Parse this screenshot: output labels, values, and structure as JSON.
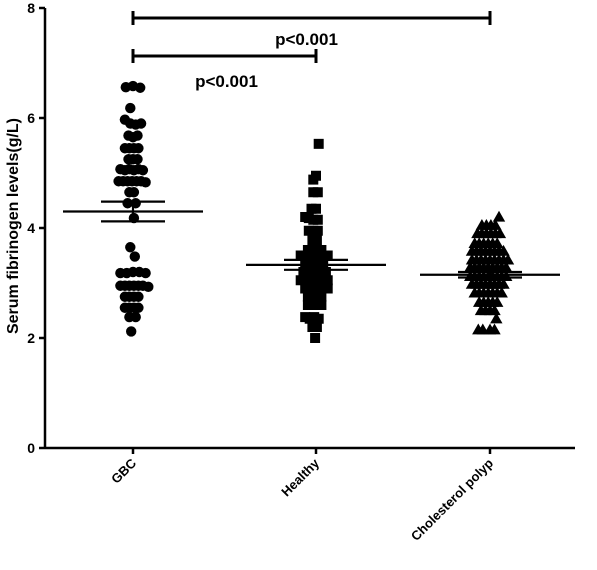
{
  "chart_data": {
    "type": "scatter",
    "subtype": "dot-plot",
    "ylabel": "Serum fibrinogen levels(g/L)",
    "xlabel": "",
    "ylim": [
      0,
      8
    ],
    "yticks": [
      0,
      2,
      4,
      6,
      8
    ],
    "grid": false,
    "categories": [
      "GBC",
      "Healthy",
      "Cholesterol polyp"
    ],
    "groups": [
      {
        "category": "GBC",
        "marker": "circle",
        "mean": 4.3,
        "sem_low": 4.12,
        "sem_high": 4.48,
        "points": [
          {
            "o": -0.8,
            "v": 6.56
          },
          {
            "o": 0.0,
            "v": 6.58
          },
          {
            "o": 0.8,
            "v": 6.55
          },
          {
            "o": -0.3,
            "v": 6.18
          },
          {
            "o": -0.9,
            "v": 5.97
          },
          {
            "o": -0.3,
            "v": 5.9
          },
          {
            "o": 0.3,
            "v": 5.88
          },
          {
            "o": 0.9,
            "v": 5.9
          },
          {
            "o": -0.5,
            "v": 5.68
          },
          {
            "o": 0.0,
            "v": 5.65
          },
          {
            "o": 0.5,
            "v": 5.68
          },
          {
            "o": -0.9,
            "v": 5.45
          },
          {
            "o": -0.4,
            "v": 5.45
          },
          {
            "o": 0.1,
            "v": 5.45
          },
          {
            "o": 0.6,
            "v": 5.45
          },
          {
            "o": -0.5,
            "v": 5.25
          },
          {
            "o": 0.0,
            "v": 5.25
          },
          {
            "o": 0.5,
            "v": 5.25
          },
          {
            "o": -1.4,
            "v": 5.07
          },
          {
            "o": -0.9,
            "v": 5.05
          },
          {
            "o": -0.4,
            "v": 5.07
          },
          {
            "o": 0.1,
            "v": 5.05
          },
          {
            "o": 0.6,
            "v": 5.07
          },
          {
            "o": 1.1,
            "v": 5.05
          },
          {
            "o": -1.6,
            "v": 4.85
          },
          {
            "o": -1.1,
            "v": 4.85
          },
          {
            "o": -0.6,
            "v": 4.85
          },
          {
            "o": -0.1,
            "v": 4.85
          },
          {
            "o": 0.4,
            "v": 4.85
          },
          {
            "o": 0.9,
            "v": 4.85
          },
          {
            "o": 1.4,
            "v": 4.83
          },
          {
            "o": -0.4,
            "v": 4.65
          },
          {
            "o": 0.1,
            "v": 4.65
          },
          {
            "o": -0.6,
            "v": 4.45
          },
          {
            "o": 0.3,
            "v": 4.45
          },
          {
            "o": 0.1,
            "v": 4.18
          },
          {
            "o": -0.3,
            "v": 3.65
          },
          {
            "o": 0.2,
            "v": 3.48
          },
          {
            "o": -1.4,
            "v": 3.18
          },
          {
            "o": -0.7,
            "v": 3.18
          },
          {
            "o": 0.0,
            "v": 3.2
          },
          {
            "o": 0.7,
            "v": 3.2
          },
          {
            "o": 1.4,
            "v": 3.18
          },
          {
            "o": -1.4,
            "v": 2.95
          },
          {
            "o": -0.9,
            "v": 2.95
          },
          {
            "o": -0.4,
            "v": 2.95
          },
          {
            "o": 0.1,
            "v": 2.95
          },
          {
            "o": 0.6,
            "v": 2.95
          },
          {
            "o": 1.1,
            "v": 2.95
          },
          {
            "o": 1.7,
            "v": 2.93
          },
          {
            "o": -0.9,
            "v": 2.75
          },
          {
            "o": -0.4,
            "v": 2.75
          },
          {
            "o": 0.1,
            "v": 2.75
          },
          {
            "o": 0.6,
            "v": 2.75
          },
          {
            "o": -0.9,
            "v": 2.55
          },
          {
            "o": -0.4,
            "v": 2.55
          },
          {
            "o": 0.1,
            "v": 2.55
          },
          {
            "o": 0.6,
            "v": 2.55
          },
          {
            "o": -0.4,
            "v": 2.38
          },
          {
            "o": 0.3,
            "v": 2.38
          },
          {
            "o": -0.2,
            "v": 2.12
          }
        ]
      },
      {
        "category": "Healthy",
        "marker": "square",
        "mean": 3.33,
        "sem_low": 3.24,
        "sem_high": 3.42,
        "points": [
          {
            "o": 0.3,
            "v": 5.53
          },
          {
            "o": 0.0,
            "v": 4.95
          },
          {
            "o": -0.3,
            "v": 4.88
          },
          {
            "o": -0.3,
            "v": 4.65
          },
          {
            "o": 0.2,
            "v": 4.65
          },
          {
            "o": -0.5,
            "v": 4.35
          },
          {
            "o": 0.0,
            "v": 4.35
          },
          {
            "o": -1.2,
            "v": 4.2
          },
          {
            "o": -0.8,
            "v": 4.18
          },
          {
            "o": -0.3,
            "v": 4.15
          },
          {
            "o": 0.2,
            "v": 4.15
          },
          {
            "o": -0.8,
            "v": 3.95
          },
          {
            "o": -0.3,
            "v": 3.95
          },
          {
            "o": 0.2,
            "v": 3.95
          },
          {
            "o": -0.4,
            "v": 3.78
          },
          {
            "o": 0.1,
            "v": 3.78
          },
          {
            "o": -0.9,
            "v": 3.6
          },
          {
            "o": -0.4,
            "v": 3.6
          },
          {
            "o": 0.1,
            "v": 3.6
          },
          {
            "o": 0.6,
            "v": 3.6
          },
          {
            "o": -1.7,
            "v": 3.5
          },
          {
            "o": -1.2,
            "v": 3.5
          },
          {
            "o": -0.7,
            "v": 3.5
          },
          {
            "o": -0.2,
            "v": 3.5
          },
          {
            "o": 0.3,
            "v": 3.5
          },
          {
            "o": 0.8,
            "v": 3.5
          },
          {
            "o": 1.3,
            "v": 3.5
          },
          {
            "o": -1.2,
            "v": 3.35
          },
          {
            "o": -0.7,
            "v": 3.35
          },
          {
            "o": -0.2,
            "v": 3.35
          },
          {
            "o": 0.3,
            "v": 3.35
          },
          {
            "o": 0.8,
            "v": 3.35
          },
          {
            "o": -1.4,
            "v": 3.2
          },
          {
            "o": -0.9,
            "v": 3.2
          },
          {
            "o": -0.4,
            "v": 3.2
          },
          {
            "o": 0.1,
            "v": 3.2
          },
          {
            "o": 0.6,
            "v": 3.2
          },
          {
            "o": 1.1,
            "v": 3.2
          },
          {
            "o": -1.7,
            "v": 3.05
          },
          {
            "o": -1.2,
            "v": 3.05
          },
          {
            "o": -0.7,
            "v": 3.05
          },
          {
            "o": -0.2,
            "v": 3.05
          },
          {
            "o": 0.3,
            "v": 3.05
          },
          {
            "o": 0.8,
            "v": 3.05
          },
          {
            "o": 1.3,
            "v": 3.05
          },
          {
            "o": -1.2,
            "v": 2.9
          },
          {
            "o": -0.7,
            "v": 2.9
          },
          {
            "o": -0.2,
            "v": 2.9
          },
          {
            "o": 0.3,
            "v": 2.9
          },
          {
            "o": 0.8,
            "v": 2.9
          },
          {
            "o": 1.3,
            "v": 2.9
          },
          {
            "o": -0.9,
            "v": 2.75
          },
          {
            "o": -0.4,
            "v": 2.75
          },
          {
            "o": 0.1,
            "v": 2.75
          },
          {
            "o": 0.6,
            "v": 2.75
          },
          {
            "o": -0.9,
            "v": 2.6
          },
          {
            "o": -0.4,
            "v": 2.6
          },
          {
            "o": 0.1,
            "v": 2.6
          },
          {
            "o": 0.6,
            "v": 2.6
          },
          {
            "o": -1.2,
            "v": 2.38
          },
          {
            "o": -0.7,
            "v": 2.35
          },
          {
            "o": -0.2,
            "v": 2.38
          },
          {
            "o": 0.3,
            "v": 2.35
          },
          {
            "o": -0.4,
            "v": 2.2
          },
          {
            "o": 0.1,
            "v": 2.2
          },
          {
            "o": -0.1,
            "v": 2.0
          }
        ]
      },
      {
        "category": "Cholesterol polyp",
        "marker": "triangle",
        "mean": 3.15,
        "sem_low": 3.1,
        "sem_high": 3.2,
        "points": [
          {
            "o": 1.0,
            "v": 4.2
          },
          {
            "o": -0.9,
            "v": 4.05
          },
          {
            "o": -0.4,
            "v": 4.05
          },
          {
            "o": 0.1,
            "v": 4.05
          },
          {
            "o": 0.6,
            "v": 4.05
          },
          {
            "o": -1.4,
            "v": 3.9
          },
          {
            "o": -0.9,
            "v": 3.9
          },
          {
            "o": -0.4,
            "v": 3.9
          },
          {
            "o": 0.1,
            "v": 3.9
          },
          {
            "o": 0.6,
            "v": 3.9
          },
          {
            "o": 1.1,
            "v": 3.9
          },
          {
            "o": -1.7,
            "v": 3.72
          },
          {
            "o": -1.2,
            "v": 3.72
          },
          {
            "o": -0.7,
            "v": 3.72
          },
          {
            "o": -0.2,
            "v": 3.72
          },
          {
            "o": 0.3,
            "v": 3.72
          },
          {
            "o": 0.8,
            "v": 3.72
          },
          {
            "o": -2.0,
            "v": 3.58
          },
          {
            "o": -1.5,
            "v": 3.58
          },
          {
            "o": -1.0,
            "v": 3.58
          },
          {
            "o": -0.5,
            "v": 3.58
          },
          {
            "o": 0.0,
            "v": 3.58
          },
          {
            "o": 0.5,
            "v": 3.58
          },
          {
            "o": 1.0,
            "v": 3.58
          },
          {
            "o": 1.5,
            "v": 3.58
          },
          {
            "o": -2.0,
            "v": 3.42
          },
          {
            "o": -1.5,
            "v": 3.42
          },
          {
            "o": -1.0,
            "v": 3.42
          },
          {
            "o": -0.5,
            "v": 3.42
          },
          {
            "o": 0.0,
            "v": 3.42
          },
          {
            "o": 0.5,
            "v": 3.42
          },
          {
            "o": 1.0,
            "v": 3.42
          },
          {
            "o": 1.5,
            "v": 3.42
          },
          {
            "o": 2.0,
            "v": 3.42
          },
          {
            "o": -2.2,
            "v": 3.28
          },
          {
            "o": -1.7,
            "v": 3.28
          },
          {
            "o": -1.2,
            "v": 3.28
          },
          {
            "o": -0.7,
            "v": 3.28
          },
          {
            "o": -0.2,
            "v": 3.28
          },
          {
            "o": 0.3,
            "v": 3.28
          },
          {
            "o": 0.8,
            "v": 3.28
          },
          {
            "o": 1.3,
            "v": 3.28
          },
          {
            "o": 1.8,
            "v": 3.28
          },
          {
            "o": -2.2,
            "v": 3.12
          },
          {
            "o": -1.7,
            "v": 3.12
          },
          {
            "o": -1.2,
            "v": 3.12
          },
          {
            "o": -0.7,
            "v": 3.12
          },
          {
            "o": -0.2,
            "v": 3.12
          },
          {
            "o": 0.3,
            "v": 3.12
          },
          {
            "o": 0.8,
            "v": 3.12
          },
          {
            "o": 1.3,
            "v": 3.12
          },
          {
            "o": 1.8,
            "v": 3.12
          },
          {
            "o": -2.0,
            "v": 2.98
          },
          {
            "o": -1.5,
            "v": 2.98
          },
          {
            "o": -1.0,
            "v": 2.98
          },
          {
            "o": -0.5,
            "v": 2.98
          },
          {
            "o": 0.0,
            "v": 2.98
          },
          {
            "o": 0.5,
            "v": 2.98
          },
          {
            "o": 1.0,
            "v": 2.98
          },
          {
            "o": 1.5,
            "v": 2.98
          },
          {
            "o": -1.7,
            "v": 2.82
          },
          {
            "o": -1.2,
            "v": 2.82
          },
          {
            "o": -0.7,
            "v": 2.82
          },
          {
            "o": -0.2,
            "v": 2.82
          },
          {
            "o": 0.3,
            "v": 2.82
          },
          {
            "o": 0.8,
            "v": 2.82
          },
          {
            "o": 1.3,
            "v": 2.82
          },
          {
            "o": -1.2,
            "v": 2.65
          },
          {
            "o": -0.7,
            "v": 2.65
          },
          {
            "o": -0.2,
            "v": 2.65
          },
          {
            "o": 0.3,
            "v": 2.65
          },
          {
            "o": 0.8,
            "v": 2.65
          },
          {
            "o": -1.0,
            "v": 2.5
          },
          {
            "o": -0.5,
            "v": 2.5
          },
          {
            "o": 0.0,
            "v": 2.5
          },
          {
            "o": 0.5,
            "v": 2.5
          },
          {
            "o": 0.7,
            "v": 2.35
          },
          {
            "o": -1.3,
            "v": 2.15
          },
          {
            "o": -0.8,
            "v": 2.15
          },
          {
            "o": 0.0,
            "v": 2.15
          },
          {
            "o": 0.5,
            "v": 2.15
          }
        ]
      }
    ],
    "comparisons": [
      {
        "from": "GBC",
        "to": "Healthy",
        "label": "p<0.001",
        "level": 1
      },
      {
        "from": "GBC",
        "to": "Cholesterol polyp",
        "label": "p<0.001",
        "level": 2
      }
    ]
  }
}
